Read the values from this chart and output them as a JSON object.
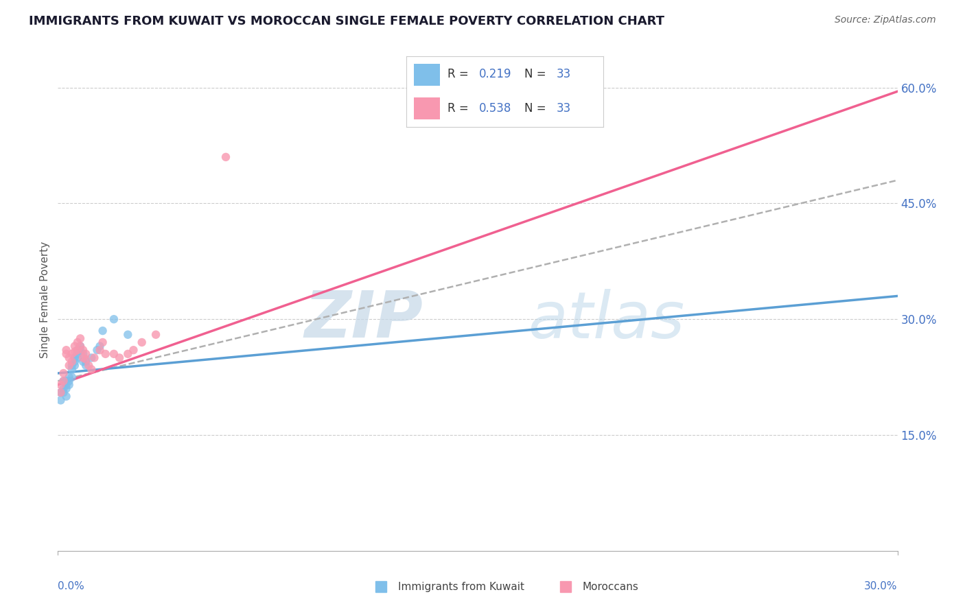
{
  "title": "IMMIGRANTS FROM KUWAIT VS MOROCCAN SINGLE FEMALE POVERTY CORRELATION CHART",
  "source": "Source: ZipAtlas.com",
  "ylabel": "Single Female Poverty",
  "right_yticks": [
    "15.0%",
    "30.0%",
    "45.0%",
    "60.0%"
  ],
  "right_ytick_vals": [
    0.15,
    0.3,
    0.45,
    0.6
  ],
  "R_kuwait": 0.219,
  "R_morocco": 0.538,
  "N": 33,
  "xlim": [
    0.0,
    0.3
  ],
  "ylim": [
    0.0,
    0.65
  ],
  "color_kuwait": "#7fbfea",
  "color_morocco": "#f898b0",
  "color_kuwait_line": "#5b9fd4",
  "color_morocco_line": "#f06090",
  "color_dashed_line": "#b0b0b0",
  "watermark_zip": "ZIP",
  "watermark_atlas": "atlas",
  "kuwait_x": [
    0.001,
    0.001,
    0.002,
    0.002,
    0.002,
    0.003,
    0.003,
    0.003,
    0.003,
    0.004,
    0.004,
    0.004,
    0.005,
    0.005,
    0.005,
    0.006,
    0.006,
    0.006,
    0.007,
    0.007,
    0.007,
    0.008,
    0.008,
    0.009,
    0.009,
    0.01,
    0.01,
    0.012,
    0.014,
    0.015,
    0.016,
    0.02,
    0.025
  ],
  "kuwait_y": [
    0.205,
    0.195,
    0.22,
    0.21,
    0.205,
    0.22,
    0.215,
    0.21,
    0.2,
    0.225,
    0.22,
    0.215,
    0.24,
    0.235,
    0.225,
    0.25,
    0.245,
    0.24,
    0.26,
    0.255,
    0.25,
    0.265,
    0.26,
    0.255,
    0.245,
    0.245,
    0.24,
    0.25,
    0.26,
    0.265,
    0.285,
    0.3,
    0.28
  ],
  "morocco_x": [
    0.001,
    0.001,
    0.002,
    0.002,
    0.003,
    0.003,
    0.004,
    0.004,
    0.005,
    0.005,
    0.006,
    0.006,
    0.007,
    0.007,
    0.008,
    0.008,
    0.009,
    0.009,
    0.01,
    0.01,
    0.011,
    0.012,
    0.013,
    0.015,
    0.016,
    0.017,
    0.02,
    0.022,
    0.025,
    0.027,
    0.03,
    0.035,
    0.06
  ],
  "morocco_y": [
    0.215,
    0.205,
    0.23,
    0.22,
    0.26,
    0.255,
    0.25,
    0.24,
    0.255,
    0.245,
    0.265,
    0.258,
    0.27,
    0.26,
    0.275,
    0.265,
    0.26,
    0.25,
    0.255,
    0.248,
    0.24,
    0.235,
    0.25,
    0.26,
    0.27,
    0.255,
    0.255,
    0.25,
    0.255,
    0.26,
    0.27,
    0.28,
    0.51
  ],
  "regression_kuwait": [
    0.23,
    0.33
  ],
  "regression_morocco": [
    0.215,
    0.595
  ],
  "dashed_line": [
    0.22,
    0.48
  ],
  "xlim_reg": [
    0.0,
    0.3
  ]
}
